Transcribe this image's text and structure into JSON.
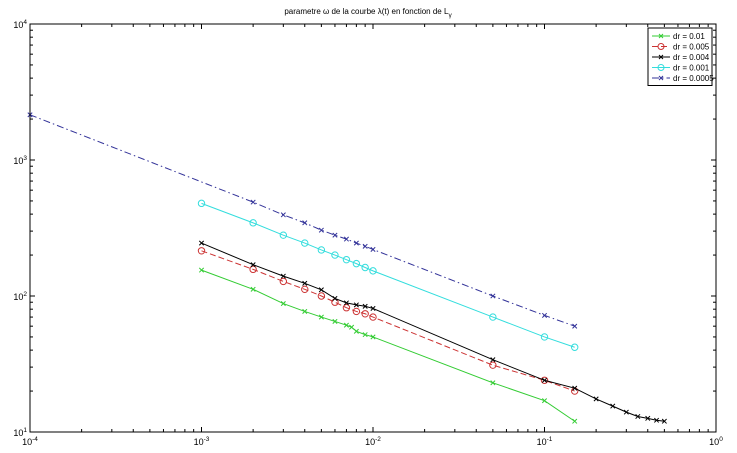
{
  "chart_data": {
    "type": "line",
    "title": "parametre ω de la courbe λ(t) en fonction de L",
    "title_subscript": "γ",
    "xlabel": "",
    "ylabel": "",
    "xscale": "log",
    "yscale": "log",
    "xlim": [
      0.0001,
      1
    ],
    "ylim": [
      10,
      10000
    ],
    "grid": false,
    "legend_position": "top-right",
    "x_ticks": [
      {
        "base": "10",
        "exp": "-4",
        "value": 0.0001
      },
      {
        "base": "10",
        "exp": "-3",
        "value": 0.001
      },
      {
        "base": "10",
        "exp": "-2",
        "value": 0.01
      },
      {
        "base": "10",
        "exp": "-1",
        "value": 0.1
      },
      {
        "base": "10",
        "exp": "0",
        "value": 1
      }
    ],
    "y_ticks": [
      {
        "base": "10",
        "exp": "1",
        "value": 10
      },
      {
        "base": "10",
        "exp": "2",
        "value": 100
      },
      {
        "base": "10",
        "exp": "3",
        "value": 1000
      },
      {
        "base": "10",
        "exp": "4",
        "value": 10000
      }
    ],
    "series": [
      {
        "name": "dr = 0.01",
        "color": "#33cc33",
        "marker": "x",
        "dash": "solid",
        "x": [
          0.001,
          0.002,
          0.003,
          0.004,
          0.005,
          0.006,
          0.007,
          0.0075,
          0.008,
          0.009,
          0.01,
          0.05,
          0.1,
          0.15
        ],
        "y": [
          155,
          112,
          88,
          77,
          70,
          65,
          61,
          59,
          55,
          52,
          50,
          23,
          17,
          12
        ]
      },
      {
        "name": "dr = 0.005",
        "color": "#cc3333",
        "marker": "o",
        "dash": "dashed",
        "x": [
          0.001,
          0.002,
          0.003,
          0.004,
          0.005,
          0.006,
          0.007,
          0.008,
          0.009,
          0.01,
          0.05,
          0.1,
          0.15
        ],
        "y": [
          215,
          157,
          128,
          112,
          100,
          90,
          82,
          77,
          74,
          70,
          31,
          24,
          20
        ]
      },
      {
        "name": "dr = 0.004",
        "color": "#000000",
        "marker": "x",
        "dash": "solid",
        "x": [
          0.001,
          0.002,
          0.003,
          0.004,
          0.005,
          0.006,
          0.007,
          0.008,
          0.009,
          0.01,
          0.05,
          0.1,
          0.15,
          0.2,
          0.25,
          0.3,
          0.35,
          0.4,
          0.45,
          0.5
        ],
        "y": [
          245,
          170,
          140,
          124,
          111,
          96,
          89,
          86,
          84,
          81,
          34,
          24,
          21,
          17.5,
          15.5,
          14,
          13,
          12.6,
          12.2,
          12
        ]
      },
      {
        "name": "dr = 0.001",
        "color": "#33dddd",
        "marker": "o",
        "dash": "solid",
        "x": [
          0.001,
          0.002,
          0.003,
          0.004,
          0.005,
          0.006,
          0.007,
          0.008,
          0.009,
          0.01,
          0.05,
          0.1,
          0.15
        ],
        "y": [
          480,
          345,
          280,
          245,
          218,
          200,
          185,
          173,
          162,
          153,
          70,
          50,
          42
        ]
      },
      {
        "name": "dr = 0.0005",
        "color": "#333399",
        "marker": "x",
        "dash": "dashdot",
        "x": [
          0.0001,
          0.002,
          0.003,
          0.004,
          0.005,
          0.006,
          0.007,
          0.008,
          0.009,
          0.01,
          0.05,
          0.1,
          0.15
        ],
        "y": [
          2150,
          490,
          395,
          345,
          305,
          280,
          262,
          245,
          232,
          220,
          100,
          72,
          60
        ]
      }
    ]
  }
}
